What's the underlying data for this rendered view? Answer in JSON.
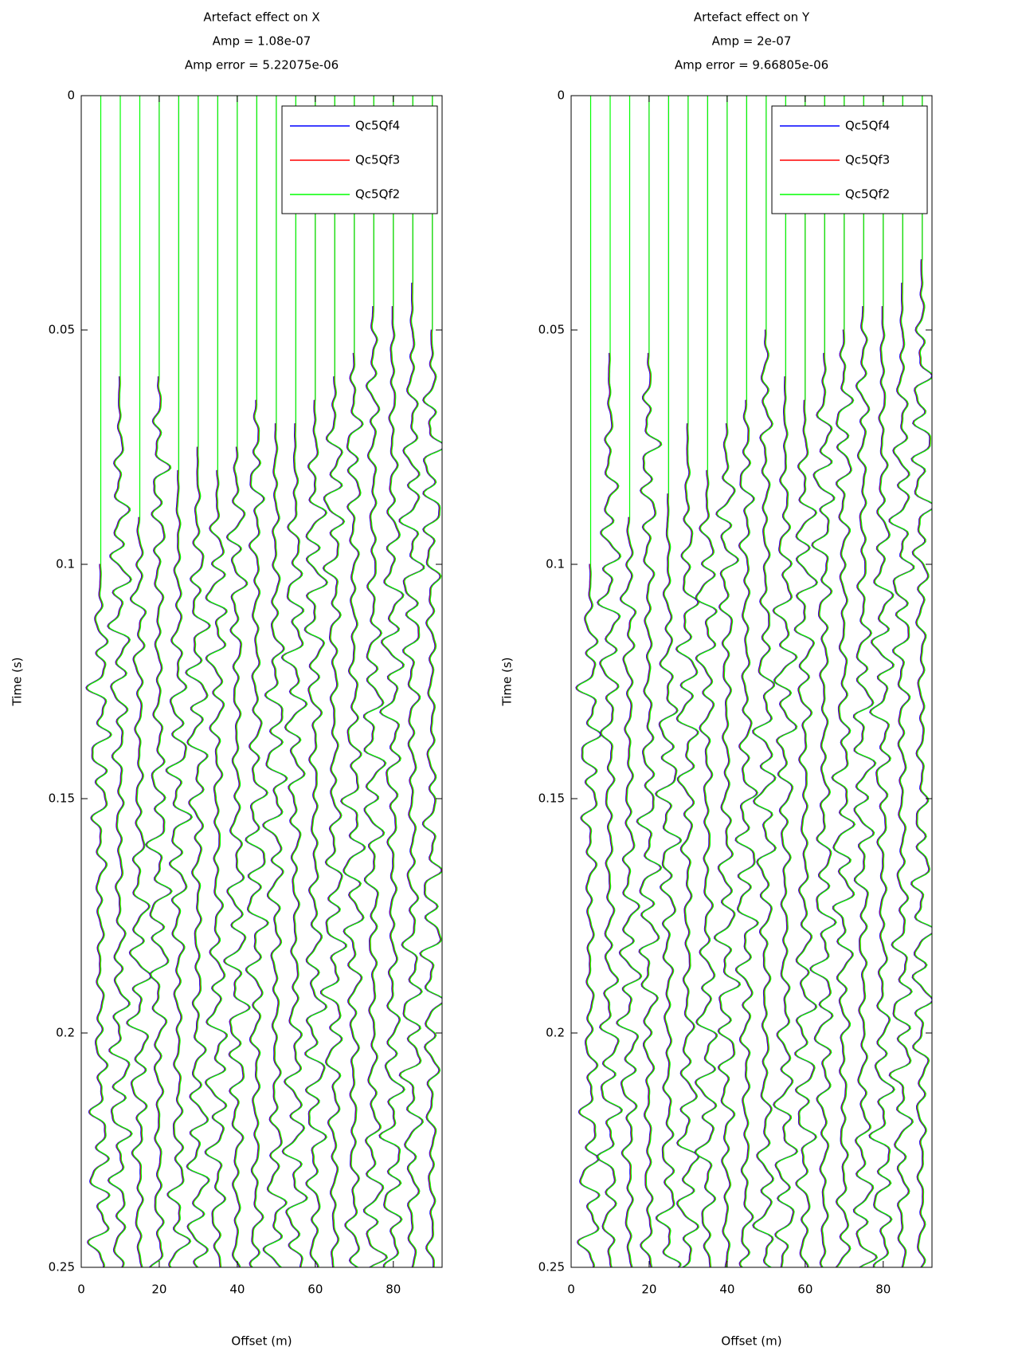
{
  "chart_data": [
    {
      "type": "wiggle",
      "title": [
        "Artefact effect on X",
        "Amp = 1.08e-07",
        "Amp error = 5.22075e-06"
      ],
      "x_label": "Offset (m)",
      "y_label": "Time (s)",
      "xlim": [
        0,
        92.5
      ],
      "ylim": [
        0,
        0.25
      ],
      "y_reversed": true,
      "xticks": [
        0,
        20,
        40,
        60,
        80
      ],
      "yticks": [
        0,
        0.05,
        0.1,
        0.15,
        0.2,
        0.25
      ],
      "legend": "upper right",
      "series": [
        {
          "name": "Qc5Qf4",
          "color": "#0000ff"
        },
        {
          "name": "Qc5Qf3",
          "color": "#ff0000"
        },
        {
          "name": "Qc5Qf2",
          "color": "#00ff00"
        }
      ],
      "offsets": [
        5,
        10,
        15,
        20,
        25,
        30,
        35,
        40,
        45,
        50,
        55,
        60,
        65,
        70,
        75,
        80,
        85,
        90
      ],
      "onsets": [
        0.1,
        0.06,
        0.09,
        0.06,
        0.08,
        0.075,
        0.08,
        0.075,
        0.065,
        0.07,
        0.07,
        0.065,
        0.06,
        0.055,
        0.045,
        0.045,
        0.04,
        0.05
      ]
    },
    {
      "type": "wiggle",
      "title": [
        "Artefact effect on Y",
        "Amp = 2e-07",
        "Amp error = 9.66805e-06"
      ],
      "x_label": "Offset (m)",
      "y_label": "Time (s)",
      "xlim": [
        0,
        92.5
      ],
      "ylim": [
        0,
        0.25
      ],
      "y_reversed": true,
      "xticks": [
        0,
        20,
        40,
        60,
        80
      ],
      "yticks": [
        0,
        0.05,
        0.1,
        0.15,
        0.2,
        0.25
      ],
      "legend": "upper right",
      "series": [
        {
          "name": "Qc5Qf4",
          "color": "#0000ff"
        },
        {
          "name": "Qc5Qf3",
          "color": "#ff0000"
        },
        {
          "name": "Qc5Qf2",
          "color": "#00ff00"
        }
      ],
      "offsets": [
        5,
        10,
        15,
        20,
        25,
        30,
        35,
        40,
        45,
        50,
        55,
        60,
        65,
        70,
        75,
        80,
        85,
        90
      ],
      "onsets": [
        0.1,
        0.055,
        0.09,
        0.055,
        0.085,
        0.07,
        0.08,
        0.07,
        0.065,
        0.05,
        0.06,
        0.065,
        0.055,
        0.05,
        0.045,
        0.045,
        0.04,
        0.035
      ]
    }
  ]
}
